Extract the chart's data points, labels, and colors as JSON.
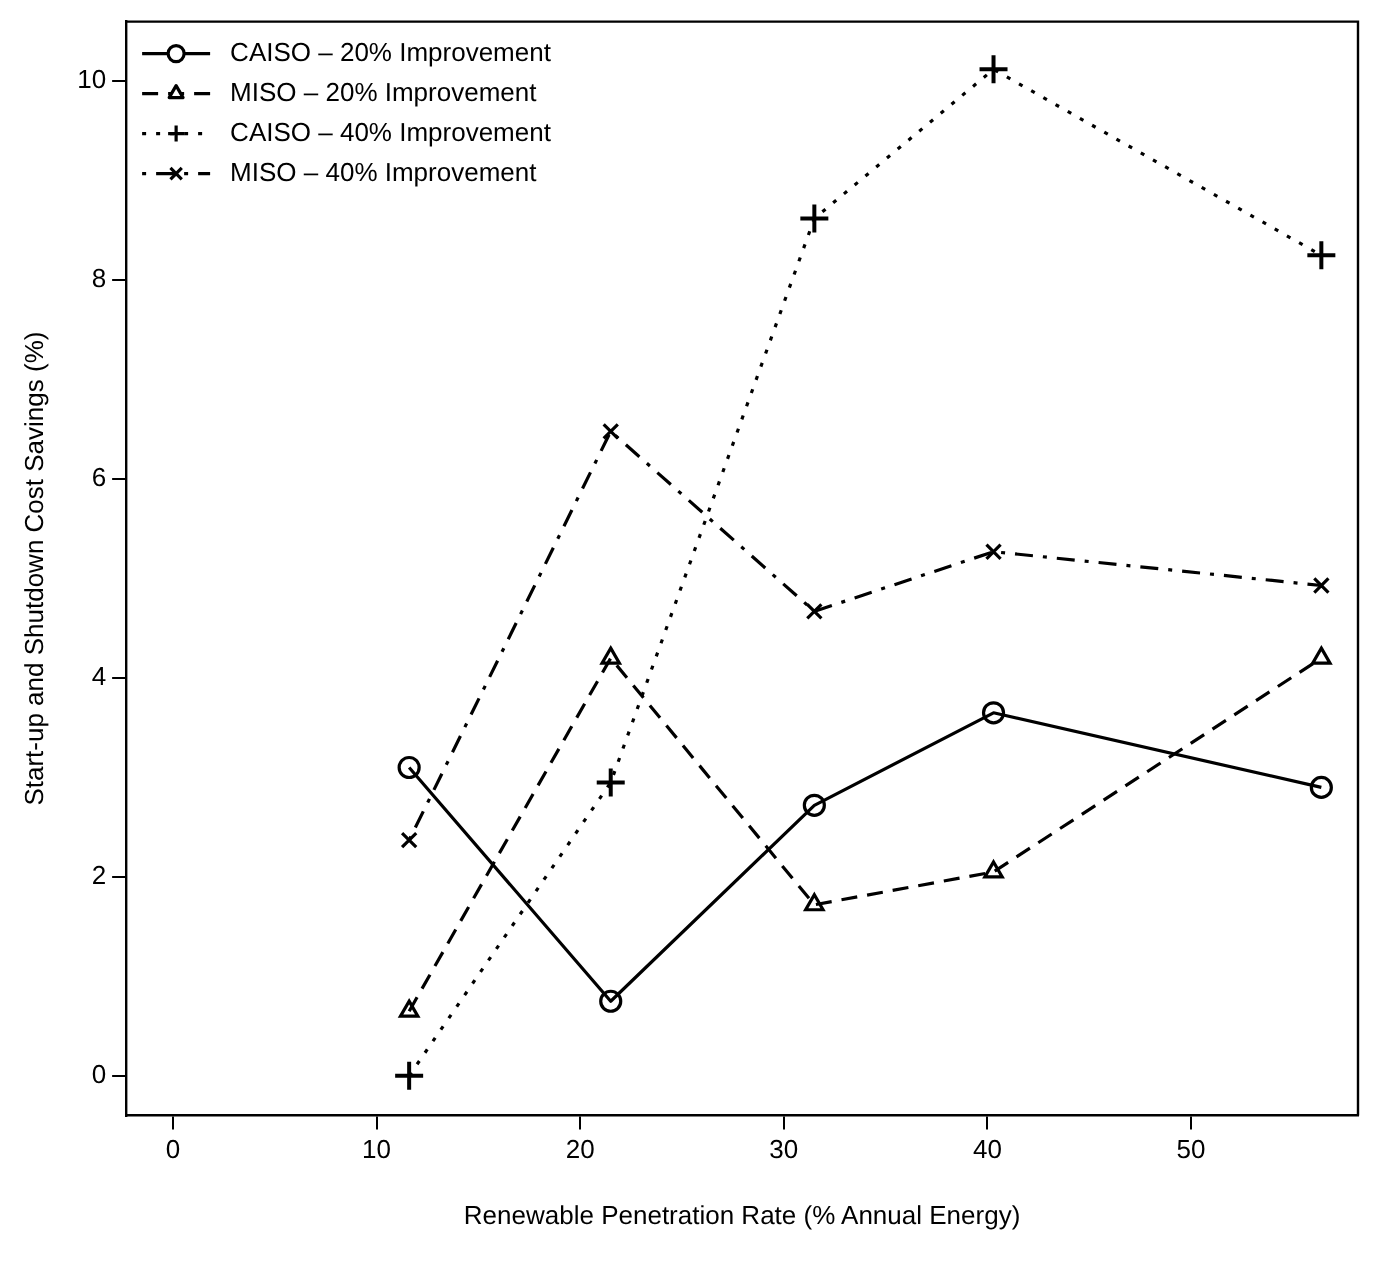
{
  "chart_data": {
    "type": "line",
    "xlabel": "Renewable Penetration Rate (% Annual Energy)",
    "ylabel": "Start-up and Shutdown Cost Savings (%)",
    "x": [
      11.6,
      21.5,
      31.5,
      40.3,
      56.4
    ],
    "series": [
      {
        "name": "CAISO – 20% Improvement",
        "color": "#000000",
        "marker": "circle",
        "line_style": "solid",
        "values": [
          3.1,
          0.75,
          2.72,
          3.65,
          2.9
        ]
      },
      {
        "name": "MISO – 20% Improvement",
        "color": "#000000",
        "marker": "triangle",
        "line_style": "dashed",
        "values": [
          0.65,
          4.2,
          1.72,
          2.05,
          4.2
        ]
      },
      {
        "name": "CAISO – 40% Improvement",
        "color": "#000000",
        "marker": "cross",
        "line_style": "dotted",
        "values": [
          0,
          2.95,
          8.62,
          10.12,
          8.25
        ]
      },
      {
        "name": "MISO – 40% Improvement",
        "color": "#000000",
        "marker": "x",
        "line_style": "dashdot",
        "values": [
          2.37,
          6.48,
          4.67,
          5.27,
          4.93
        ]
      }
    ],
    "xlim": [
      -2.3,
      58.2
    ],
    "xticks": [
      0,
      10,
      20,
      30,
      40,
      50
    ],
    "ylim": [
      -0.4,
      10.6
    ],
    "yticks": [
      0,
      2,
      4,
      6,
      8,
      10
    ],
    "grid": false,
    "legend": "top left"
  }
}
